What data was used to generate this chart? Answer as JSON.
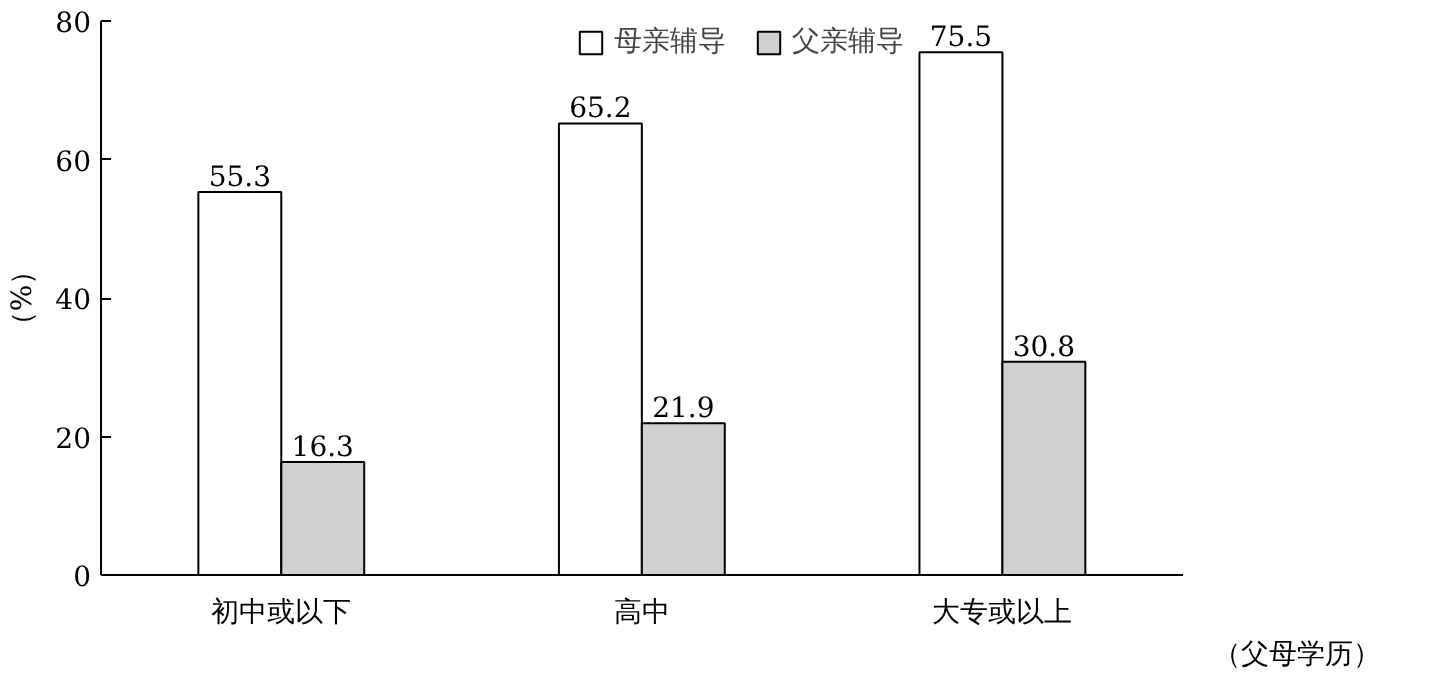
{
  "chart_data": {
    "type": "bar",
    "ylabel": "（%）",
    "xlabel": "（父母学历）",
    "categories": [
      "初中或以下",
      "高中",
      "大专或以上"
    ],
    "series": [
      {
        "name": "母亲辅导",
        "color": "#ffffff",
        "values": [
          55.3,
          65.2,
          75.5
        ]
      },
      {
        "name": "父亲辅导",
        "color": "#d0d0d0",
        "values": [
          16.3,
          21.9,
          30.8
        ]
      }
    ],
    "ylim": [
      0,
      80
    ],
    "yticks": [
      0,
      20,
      40,
      60,
      80
    ],
    "data_labels": true,
    "legend": "top",
    "grid": false
  }
}
